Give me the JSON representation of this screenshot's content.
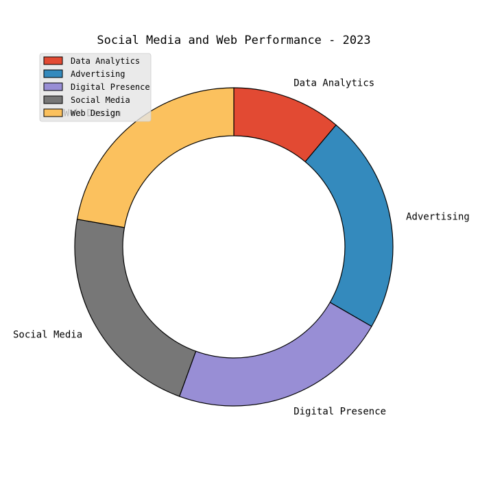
{
  "chart_data": {
    "type": "pie",
    "variant": "donut",
    "title": "Social Media and Web Performance - 2023",
    "legend": "top-left",
    "start_angle_deg": 90,
    "direction": "clockwise",
    "series": [
      {
        "name": "Data Analytics",
        "value": 11.1,
        "color": "#e24a33"
      },
      {
        "name": "Advertising",
        "value": 22.2,
        "color": "#348abd"
      },
      {
        "name": "Digital Presence",
        "value": 22.2,
        "color": "#988ed5"
      },
      {
        "name": "Social Media",
        "value": 22.2,
        "color": "#777777"
      },
      {
        "name": "Web Design",
        "value": 22.2,
        "color": "#fbc15e"
      }
    ]
  }
}
